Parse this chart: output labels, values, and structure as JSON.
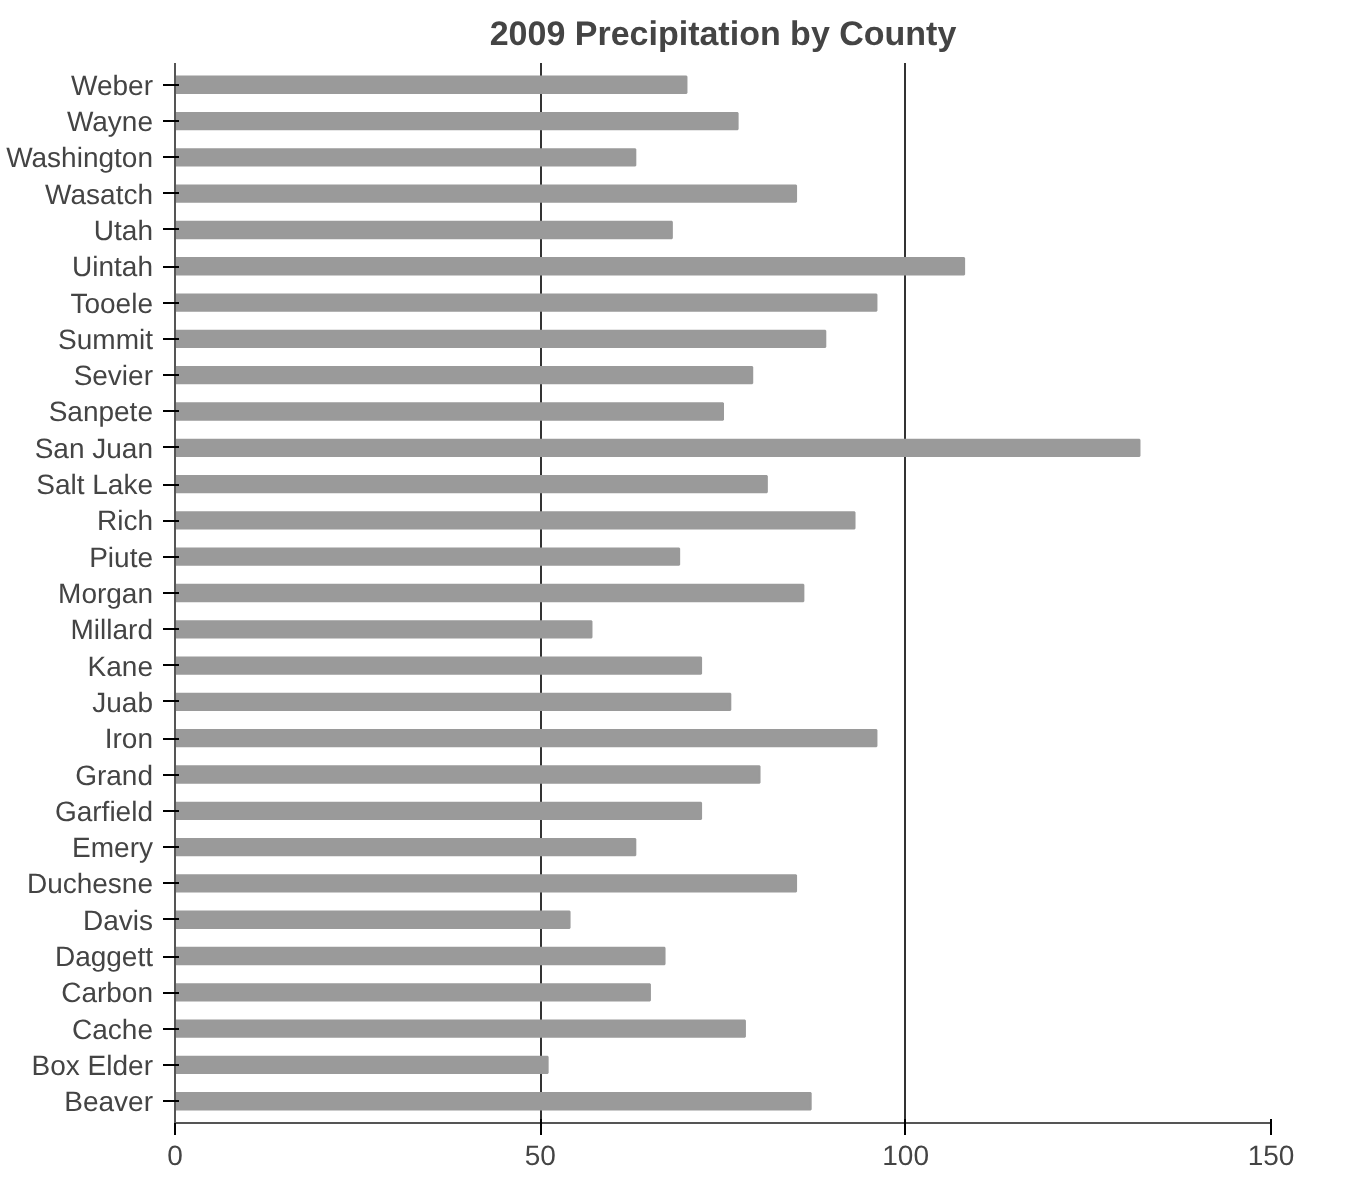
{
  "chart_data": {
    "type": "bar",
    "orientation": "horizontal",
    "title": "2009 Precipitation by County",
    "categories": [
      "Weber",
      "Wayne",
      "Washington",
      "Wasatch",
      "Utah",
      "Uintah",
      "Tooele",
      "Summit",
      "Sevier",
      "Sanpete",
      "San Juan",
      "Salt Lake",
      "Rich",
      "Piute",
      "Morgan",
      "Millard",
      "Kane",
      "Juab",
      "Iron",
      "Grand",
      "Garfield",
      "Emery",
      "Duchesne",
      "Davis",
      "Daggett",
      "Carbon",
      "Cache",
      "Box Elder",
      "Beaver"
    ],
    "values": [
      70,
      77,
      63,
      85,
      68,
      108,
      96,
      89,
      79,
      75,
      132,
      81,
      93,
      69,
      86,
      57,
      72,
      76,
      96,
      80,
      72,
      63,
      85,
      54,
      67,
      65,
      78,
      51,
      87
    ],
    "color": "#9a9a9a",
    "xlim": [
      0,
      150
    ],
    "xticks": [
      0,
      50,
      100,
      150
    ],
    "grid": "x"
  }
}
